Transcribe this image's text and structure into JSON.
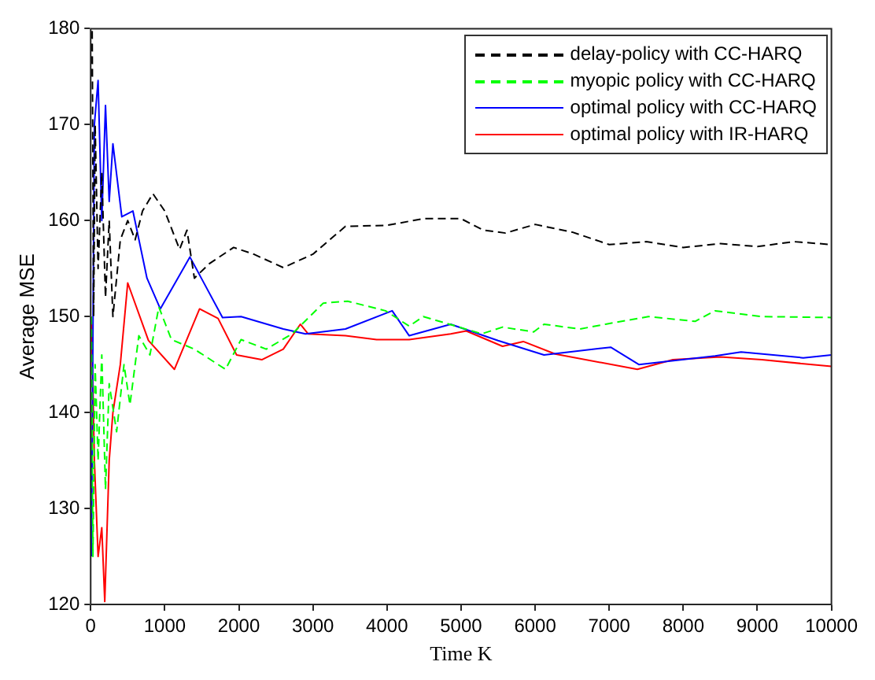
{
  "chart_data": {
    "type": "line",
    "xlabel": "Time K",
    "ylabel": "Average MSE",
    "xlim": [
      0,
      10000
    ],
    "ylim": [
      120,
      180
    ],
    "xticks": [
      0,
      1000,
      2000,
      3000,
      4000,
      5000,
      6000,
      7000,
      8000,
      9000,
      10000
    ],
    "yticks": [
      120,
      130,
      140,
      150,
      160,
      170,
      180
    ],
    "grid": false,
    "legend": "top right",
    "marker": "none",
    "series": [
      {
        "name": "delay-policy with CC-HARQ",
        "color": "#000000",
        "line_style": "dashed",
        "x": [
          10,
          20,
          40,
          60,
          100,
          150,
          200,
          250,
          300,
          400,
          500,
          600,
          700,
          840,
          1000,
          1200,
          1300,
          1400,
          1600,
          1930,
          2200,
          2600,
          3000,
          3440,
          4000,
          4490,
          5000,
          5300,
          5600,
          6000,
          6500,
          7000,
          7500,
          8000,
          8500,
          9000,
          9500,
          10000
        ],
        "values": [
          175,
          180,
          150,
          170,
          155,
          165,
          152,
          160,
          150,
          158,
          160,
          158,
          161,
          162.8,
          161,
          157,
          159,
          154,
          155.5,
          157.2,
          156.5,
          155.1,
          156.5,
          159.4,
          159.5,
          160.2,
          160.2,
          159,
          158.7,
          159.6,
          158.8,
          157.5,
          157.8,
          157.2,
          157.6,
          157.3,
          157.8,
          157.5
        ]
      },
      {
        "name": "myopic policy with CC-HARQ",
        "color": "#00ff00",
        "line_style": "dashed",
        "x": [
          10,
          30,
          60,
          100,
          150,
          200,
          250,
          350,
          450,
          530,
          650,
          800,
          920,
          1090,
          1400,
          1820,
          2030,
          2370,
          2720,
          3140,
          3470,
          3980,
          4300,
          4490,
          5280,
          5560,
          5980,
          6120,
          6600,
          6950,
          7530,
          8160,
          8430,
          9060,
          10000
        ],
        "values": [
          150,
          125,
          145,
          135,
          146,
          132,
          143,
          138,
          145,
          140.8,
          148,
          146,
          151,
          147.6,
          146.6,
          144.5,
          147.6,
          146.6,
          148.2,
          151.4,
          151.6,
          150.6,
          149,
          150,
          148.2,
          148.9,
          148.4,
          149.2,
          148.7,
          149.2,
          150,
          149.5,
          150.6,
          150,
          149.9
        ]
      },
      {
        "name": "optimal policy with CC-HARQ",
        "color": "#0000ff",
        "line_style": "solid",
        "x": [
          10,
          50,
          100,
          150,
          200,
          250,
          300,
          420,
          570,
          760,
          940,
          1340,
          1780,
          2030,
          2600,
          2900,
          3440,
          4070,
          4300,
          4860,
          5500,
          6120,
          7020,
          7400,
          8430,
          8780,
          9620,
          10000
        ],
        "values": [
          125,
          170,
          174.6,
          160,
          172,
          162,
          168,
          160.4,
          161,
          154,
          150.8,
          156.2,
          149.9,
          150,
          148.7,
          148.2,
          148.7,
          150.6,
          148,
          149.2,
          147.5,
          146,
          146.8,
          145,
          145.9,
          146.3,
          145.7,
          146
        ]
      },
      {
        "name": "optimal policy with IR-HARQ",
        "color": "#ff0000",
        "line_style": "solid",
        "x": [
          10,
          50,
          100,
          150,
          190,
          250,
          300,
          400,
          500,
          780,
          1130,
          1470,
          1720,
          1970,
          2310,
          2600,
          2830,
          2935,
          3440,
          3860,
          4300,
          4860,
          5070,
          5560,
          5840,
          6270,
          7380,
          7860,
          8500,
          9060,
          10000
        ],
        "values": [
          150,
          135,
          125,
          128,
          120.3,
          135,
          140,
          145,
          153.5,
          147.5,
          144.5,
          150.8,
          149.8,
          146,
          145.5,
          146.6,
          149.2,
          148.2,
          148,
          147.6,
          147.6,
          148.2,
          148.5,
          146.9,
          147.4,
          146.1,
          144.5,
          145.5,
          145.8,
          145.5,
          144.8
        ]
      }
    ]
  }
}
